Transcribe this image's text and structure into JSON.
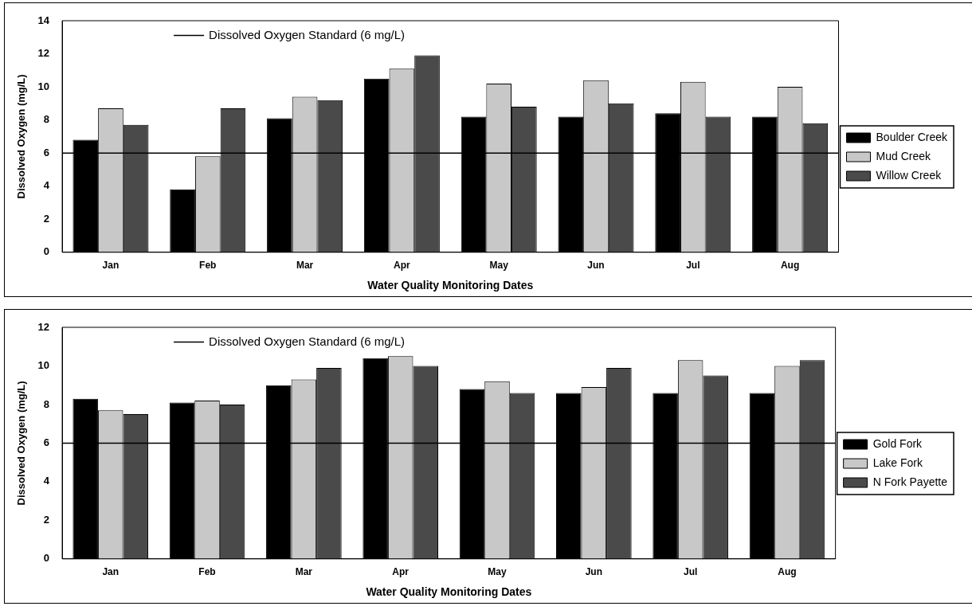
{
  "chart_data": [
    {
      "type": "bar",
      "xlabel": "Water Quality Monitoring Dates",
      "ylabel": "Dissolved Oxygen (mg/L)",
      "categories": [
        "Jan",
        "Feb",
        "Mar",
        "Apr",
        "May",
        "Jun",
        "Jul",
        "Aug"
      ],
      "series": [
        {
          "name": "Boulder Creek",
          "color": "#000000",
          "values": [
            6.8,
            3.8,
            8.1,
            10.5,
            8.2,
            8.2,
            8.4,
            8.2
          ]
        },
        {
          "name": "Mud Creek",
          "color": "#c8c8c8",
          "values": [
            8.7,
            5.8,
            9.4,
            11.1,
            10.2,
            10.4,
            10.3,
            10.0
          ]
        },
        {
          "name": "Willow Creek",
          "color": "#4a4a4a",
          "values": [
            7.7,
            8.7,
            9.2,
            11.9,
            8.8,
            9.0,
            8.2,
            7.8
          ]
        }
      ],
      "ylim": [
        0,
        14
      ],
      "yticks": [
        0,
        2,
        4,
        6,
        8,
        10,
        12,
        14
      ],
      "grid": false,
      "legend": "right",
      "ref_lines": [
        {
          "axis": "y",
          "value": 6,
          "label": "Dissolved Oxygen Standard (6 mg/L)",
          "color": "#000000"
        }
      ]
    },
    {
      "type": "bar",
      "xlabel": "Water Quality Monitoring Dates",
      "ylabel": "Dissolved Oxygen (mg/L)",
      "categories": [
        "Jan",
        "Feb",
        "Mar",
        "Apr",
        "May",
        "Jun",
        "Jul",
        "Aug"
      ],
      "series": [
        {
          "name": "Gold Fork",
          "color": "#000000",
          "values": [
            8.3,
            8.1,
            9.0,
            10.4,
            8.8,
            8.6,
            8.6,
            8.6
          ]
        },
        {
          "name": "Lake Fork",
          "color": "#c8c8c8",
          "values": [
            7.7,
            8.2,
            9.3,
            10.5,
            9.2,
            8.9,
            10.3,
            10.0
          ]
        },
        {
          "name": "N Fork Payette",
          "color": "#4a4a4a",
          "values": [
            7.5,
            8.0,
            9.9,
            10.0,
            8.6,
            9.9,
            9.5,
            10.3
          ]
        }
      ],
      "ylim": [
        0,
        12
      ],
      "yticks": [
        0,
        2,
        4,
        6,
        8,
        10,
        12
      ],
      "grid": false,
      "legend": "right",
      "ref_lines": [
        {
          "axis": "y",
          "value": 6,
          "label": "Dissolved Oxygen Standard (6 mg/L)",
          "color": "#000000"
        }
      ]
    }
  ]
}
